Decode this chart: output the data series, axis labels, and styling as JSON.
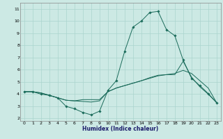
{
  "bg_color": "#cce9e4",
  "grid_color": "#aad4ce",
  "line_color": "#1a6b5a",
  "xlabel": "Humidex (Indice chaleur)",
  "xlim": [
    -0.5,
    23.5
  ],
  "ylim": [
    1.8,
    11.5
  ],
  "yticks": [
    2,
    3,
    4,
    5,
    6,
    7,
    8,
    9,
    10,
    11
  ],
  "xticks": [
    0,
    1,
    2,
    3,
    4,
    5,
    6,
    7,
    8,
    9,
    10,
    11,
    12,
    13,
    14,
    15,
    16,
    17,
    18,
    19,
    20,
    21,
    22,
    23
  ],
  "line1_x": [
    0,
    1,
    2,
    3,
    4,
    5,
    6,
    7,
    8,
    9,
    10,
    11,
    12,
    13,
    14,
    15,
    16,
    17,
    18,
    19,
    20,
    21,
    22,
    23
  ],
  "line1_y": [
    4.2,
    4.2,
    4.1,
    3.9,
    3.7,
    3.5,
    3.45,
    3.4,
    3.35,
    3.45,
    4.2,
    4.5,
    4.7,
    4.9,
    5.1,
    5.3,
    5.5,
    5.6,
    5.7,
    5.95,
    5.7,
    5.1,
    4.5,
    3.3
  ],
  "line2_x": [
    0,
    1,
    2,
    3,
    4,
    5,
    6,
    7,
    8,
    9,
    10,
    11,
    12,
    13,
    14,
    15,
    16,
    17,
    18,
    19,
    20,
    21,
    22,
    23
  ],
  "line2_y": [
    4.2,
    4.2,
    4.1,
    3.9,
    3.7,
    3.5,
    3.45,
    3.55,
    3.55,
    3.55,
    4.2,
    4.5,
    4.7,
    4.9,
    5.1,
    5.35,
    5.55,
    5.6,
    5.6,
    6.7,
    5.4,
    4.6,
    4.0,
    3.3
  ],
  "line3_x": [
    0,
    1,
    2,
    3,
    4,
    5,
    6,
    7,
    8,
    9,
    10,
    11,
    12,
    13,
    14,
    15,
    16,
    17,
    18,
    19,
    20,
    21,
    22,
    23
  ],
  "line3_y": [
    4.2,
    4.2,
    4.0,
    3.9,
    3.7,
    3.0,
    2.8,
    2.5,
    2.3,
    2.6,
    4.3,
    5.1,
    7.5,
    9.5,
    10.0,
    10.7,
    10.8,
    9.3,
    8.8,
    6.8,
    5.3,
    4.7,
    4.05,
    3.3
  ]
}
